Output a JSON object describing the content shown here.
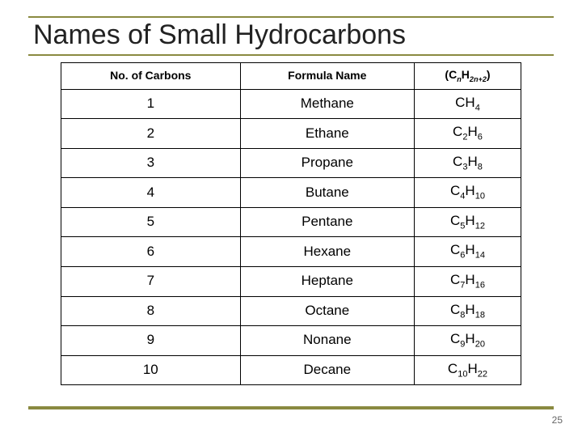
{
  "title": "Names of Small Hydrocarbons",
  "pageNumber": "25",
  "accentColor": "#8a8a40",
  "table": {
    "headers": {
      "col1": "No. of Carbons",
      "col2": "Formula Name",
      "col3_prefix": "(C",
      "col3_n1": "n",
      "col3_mid": "H",
      "col3_n2": "2n+2",
      "col3_suffix": ")"
    },
    "rows": [
      {
        "n": "1",
        "name": "Methane",
        "f_c": "CH",
        "f_csub": "",
        "f_h": "",
        "f_hsub": "4"
      },
      {
        "n": "2",
        "name": "Ethane",
        "f_c": "C",
        "f_csub": "2",
        "f_h": "H",
        "f_hsub": "6"
      },
      {
        "n": "3",
        "name": "Propane",
        "f_c": "C",
        "f_csub": "3",
        "f_h": "H",
        "f_hsub": "8"
      },
      {
        "n": "4",
        "name": "Butane",
        "f_c": "C",
        "f_csub": "4",
        "f_h": "H",
        "f_hsub": "10"
      },
      {
        "n": "5",
        "name": "Pentane",
        "f_c": "C",
        "f_csub": "5",
        "f_h": "H",
        "f_hsub": "12"
      },
      {
        "n": "6",
        "name": "Hexane",
        "f_c": "C",
        "f_csub": "6",
        "f_h": "H",
        "f_hsub": "14"
      },
      {
        "n": "7",
        "name": "Heptane",
        "f_c": "C",
        "f_csub": "7",
        "f_h": "H",
        "f_hsub": "16"
      },
      {
        "n": "8",
        "name": "Octane",
        "f_c": "C",
        "f_csub": "8",
        "f_h": "H",
        "f_hsub": "18"
      },
      {
        "n": "9",
        "name": "Nonane",
        "f_c": "C",
        "f_csub": "9",
        "f_h": "H",
        "f_hsub": "20"
      },
      {
        "n": "10",
        "name": "Decane",
        "f_c": "C",
        "f_csub": "10",
        "f_h": "H",
        "f_hsub": "22"
      }
    ]
  }
}
